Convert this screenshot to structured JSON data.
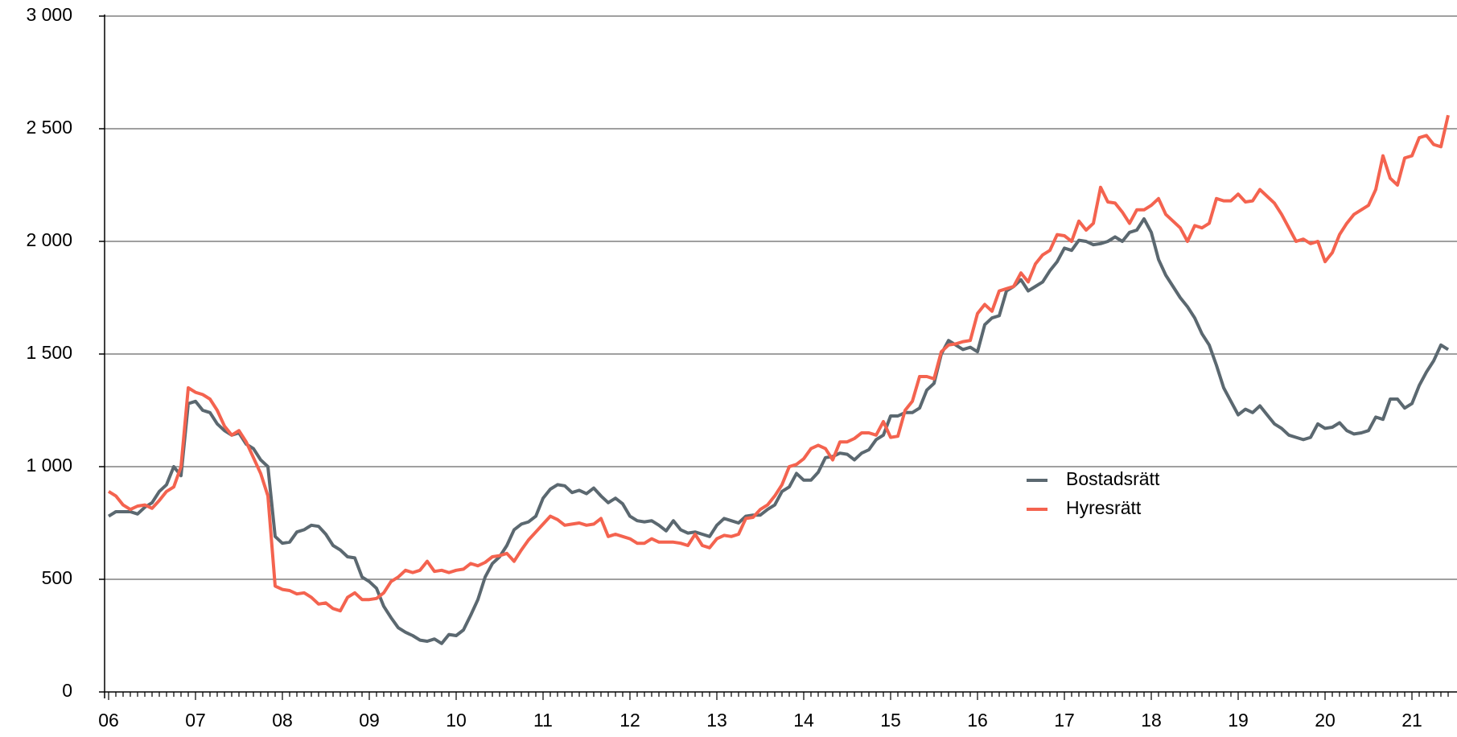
{
  "chart_data": {
    "type": "line",
    "categories": [
      "06",
      null,
      null,
      null,
      null,
      null,
      null,
      null,
      null,
      null,
      null,
      null,
      "07",
      null,
      null,
      null,
      null,
      null,
      null,
      null,
      null,
      null,
      null,
      null,
      "08",
      null,
      null,
      null,
      null,
      null,
      null,
      null,
      null,
      null,
      null,
      null,
      "09",
      null,
      null,
      null,
      null,
      null,
      null,
      null,
      null,
      null,
      null,
      null,
      "10",
      null,
      null,
      null,
      null,
      null,
      null,
      null,
      null,
      null,
      null,
      null,
      "11",
      null,
      null,
      null,
      null,
      null,
      null,
      null,
      null,
      null,
      null,
      null,
      "12",
      null,
      null,
      null,
      null,
      null,
      null,
      null,
      null,
      null,
      null,
      null,
      "13",
      null,
      null,
      null,
      null,
      null,
      null,
      null,
      null,
      null,
      null,
      null,
      "14",
      null,
      null,
      null,
      null,
      null,
      null,
      null,
      null,
      null,
      null,
      null,
      "15",
      null,
      null,
      null,
      null,
      null,
      null,
      null,
      null,
      null,
      null,
      null,
      "16",
      null,
      null,
      null,
      null,
      null,
      null,
      null,
      null,
      null,
      null,
      null,
      "17",
      null,
      null,
      null,
      null,
      null,
      null,
      null,
      null,
      null,
      null,
      null,
      "18",
      null,
      null,
      null,
      null,
      null,
      null,
      null,
      null,
      null,
      null,
      null,
      "19",
      null,
      null,
      null,
      null,
      null,
      null,
      null,
      null,
      null,
      null,
      null,
      "20",
      null,
      null,
      null,
      null,
      null,
      null,
      null,
      null,
      null,
      null,
      null,
      "21",
      null,
      null,
      null,
      null,
      null
    ],
    "series": [
      {
        "name": "Bostadsrätt",
        "color": "#5b6870",
        "values": [
          780,
          800,
          800,
          800,
          790,
          820,
          840,
          890,
          920,
          1000,
          960,
          1280,
          1290,
          1250,
          1240,
          1190,
          1160,
          1140,
          1150,
          1100,
          1080,
          1030,
          1000,
          690,
          660,
          665,
          710,
          720,
          740,
          735,
          700,
          650,
          630,
          600,
          595,
          510,
          490,
          460,
          380,
          330,
          285,
          265,
          250,
          230,
          225,
          235,
          215,
          255,
          250,
          275,
          340,
          410,
          510,
          570,
          600,
          650,
          720,
          745,
          755,
          780,
          860,
          900,
          920,
          915,
          885,
          895,
          880,
          905,
          870,
          840,
          860,
          835,
          780,
          760,
          755,
          760,
          740,
          715,
          760,
          720,
          705,
          710,
          700,
          690,
          740,
          770,
          760,
          750,
          780,
          785,
          785,
          810,
          830,
          890,
          910,
          970,
          940,
          940,
          975,
          1040,
          1045,
          1060,
          1055,
          1030,
          1060,
          1075,
          1120,
          1140,
          1225,
          1225,
          1240,
          1240,
          1260,
          1340,
          1370,
          1500,
          1560,
          1540,
          1520,
          1530,
          1510,
          1630,
          1660,
          1670,
          1780,
          1800,
          1830,
          1780,
          1800,
          1820,
          1870,
          1910,
          1970,
          1960,
          2005,
          2000,
          1985,
          1990,
          2000,
          2020,
          2000,
          2040,
          2050,
          2100,
          2040,
          1920,
          1850,
          1800,
          1750,
          1710,
          1660,
          1590,
          1540,
          1450,
          1350,
          1290,
          1230,
          1255,
          1240,
          1270,
          1230,
          1190,
          1170,
          1140,
          1130,
          1120,
          1130,
          1190,
          1170,
          1175,
          1195,
          1160,
          1145,
          1150,
          1160,
          1220,
          1210,
          1300,
          1300,
          1260,
          1280,
          1360,
          1420,
          1470,
          1540,
          1520
        ]
      },
      {
        "name": "Hyresrätt",
        "color": "#f4634f",
        "values": [
          890,
          870,
          830,
          810,
          825,
          830,
          815,
          850,
          890,
          910,
          1000,
          1350,
          1330,
          1320,
          1300,
          1250,
          1180,
          1140,
          1160,
          1110,
          1040,
          970,
          870,
          470,
          455,
          450,
          435,
          440,
          420,
          390,
          395,
          370,
          360,
          420,
          440,
          410,
          410,
          415,
          440,
          490,
          510,
          540,
          530,
          540,
          580,
          535,
          540,
          530,
          540,
          545,
          570,
          560,
          575,
          600,
          605,
          615,
          580,
          630,
          675,
          710,
          745,
          780,
          765,
          740,
          745,
          750,
          740,
          745,
          770,
          690,
          700,
          690,
          680,
          660,
          660,
          680,
          665,
          665,
          665,
          660,
          650,
          700,
          650,
          640,
          680,
          695,
          690,
          700,
          770,
          775,
          810,
          830,
          870,
          920,
          1000,
          1010,
          1035,
          1080,
          1095,
          1080,
          1030,
          1110,
          1110,
          1125,
          1150,
          1150,
          1140,
          1200,
          1130,
          1135,
          1250,
          1290,
          1400,
          1400,
          1390,
          1510,
          1540,
          1545,
          1555,
          1560,
          1680,
          1720,
          1690,
          1780,
          1790,
          1800,
          1860,
          1820,
          1900,
          1940,
          1960,
          2030,
          2025,
          2000,
          2090,
          2050,
          2080,
          2240,
          2175,
          2170,
          2130,
          2080,
          2140,
          2140,
          2160,
          2190,
          2120,
          2090,
          2060,
          2000,
          2070,
          2060,
          2080,
          2190,
          2180,
          2180,
          2210,
          2175,
          2180,
          2230,
          2200,
          2170,
          2120,
          2060,
          2000,
          2010,
          1990,
          2000,
          1910,
          1950,
          2030,
          2080,
          2120,
          2140,
          2160,
          2230,
          2380,
          2280,
          2250,
          2370,
          2380,
          2460,
          2470,
          2430,
          2420,
          2560
        ]
      }
    ],
    "ylim": [
      0,
      3000
    ],
    "yticks": [
      0,
      500,
      {
        "value": 1000,
        "label": "1 000"
      },
      {
        "value": 1500,
        "label": "1 500"
      },
      {
        "value": 2000,
        "label": "2 000"
      },
      {
        "value": 2500,
        "label": "2 500"
      },
      {
        "value": 3000,
        "label": "3 000"
      }
    ],
    "grid": true
  }
}
